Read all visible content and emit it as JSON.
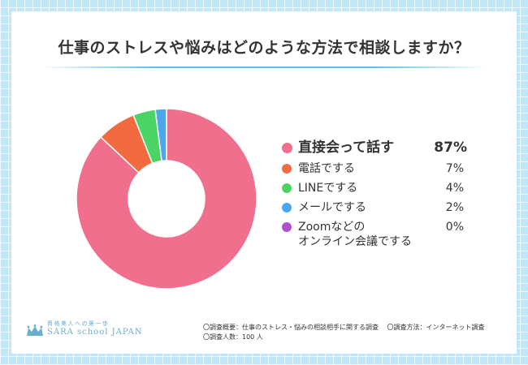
{
  "title": "仕事のストレスや悩みはどのような方法で相談しますか？",
  "chart_data": {
    "type": "pie",
    "donut": true,
    "title": "仕事のストレスや悩みはどのような方法で相談しますか？",
    "unit": "%",
    "legend_position": "right",
    "slices": [
      {
        "label": "直接会って話す",
        "value": 87,
        "display": "87%",
        "color": "#f06f8c"
      },
      {
        "label": "電話でする",
        "value": 7,
        "display": "7%",
        "color": "#f26a3f"
      },
      {
        "label": "LINEでする",
        "value": 4,
        "display": "4%",
        "color": "#4cd366"
      },
      {
        "label": "メールでする",
        "value": 2,
        "display": "2%",
        "color": "#4aa6ee"
      },
      {
        "label": "Zoomなどのオンライン会議でする",
        "label_lines": [
          "Zoomなどの",
          "オンライン会議でする"
        ],
        "value": 0,
        "display": "0%",
        "color": "#b04fd0"
      }
    ]
  },
  "logo": {
    "tagline": "資格美人への第一歩",
    "brand": "SARA school JAPAN"
  },
  "notes": {
    "outline": "〇調査概要：仕事のストレス・悩みの相談相手に関する調査",
    "method": "〇調査方法：インターネット調査",
    "respondents": "〇調査人数：100 人"
  }
}
